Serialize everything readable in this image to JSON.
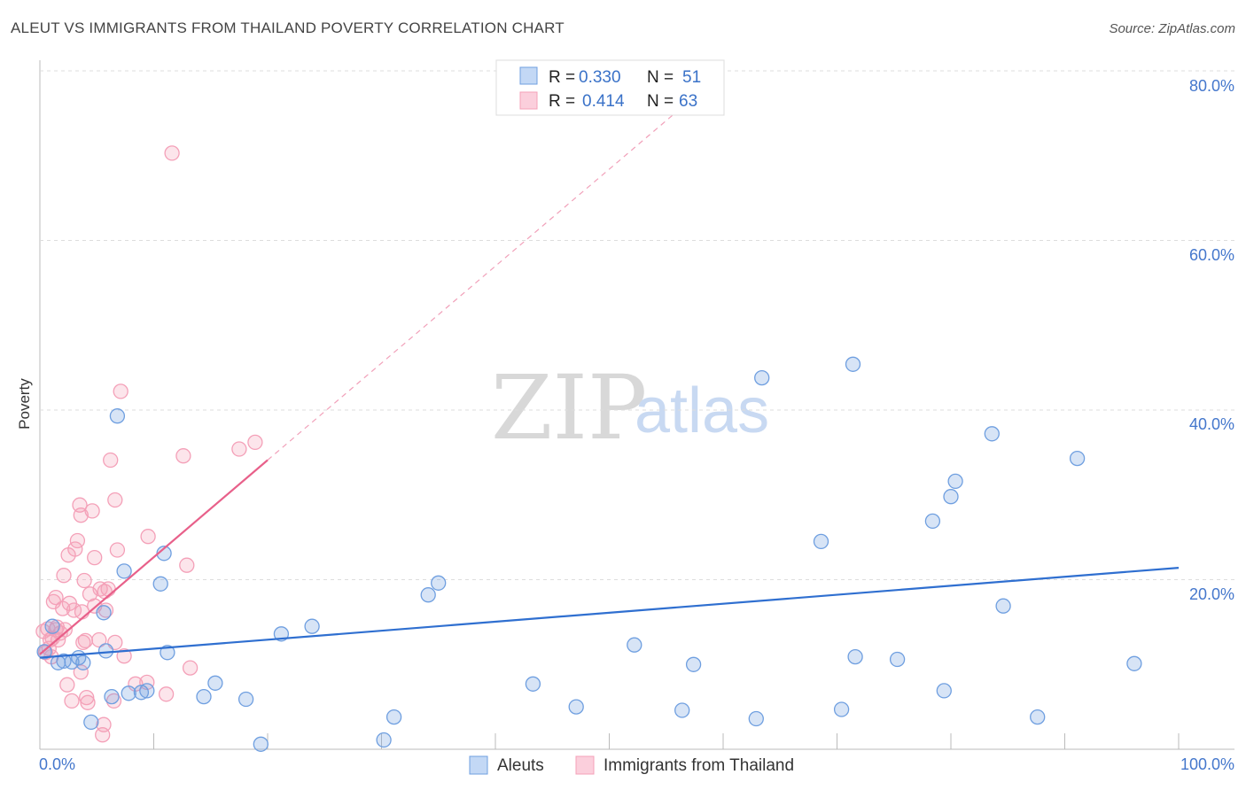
{
  "title": "ALEUT VS IMMIGRANTS FROM THAILAND POVERTY CORRELATION CHART",
  "source": "Source: ZipAtlas.com",
  "watermark": {
    "zip": "ZIP",
    "atlas": "atlas"
  },
  "legend": {
    "items": [
      {
        "r_label": "R =",
        "r_value": "0.330",
        "n_label": "N =",
        "n_value": "51"
      },
      {
        "r_label": "R =",
        "r_value": "0.414",
        "n_label": "N =",
        "n_value": "63"
      }
    ]
  },
  "bottom_legend": [
    "Aleuts",
    "Immigrants from Thailand"
  ],
  "chart_data": {
    "type": "scatter",
    "xlabel": "",
    "ylabel": "Poverty",
    "x_ticks": [
      "0.0%",
      "100.0%"
    ],
    "y_ticks": [
      "20.0%",
      "40.0%",
      "60.0%",
      "80.0%"
    ],
    "xlim": [
      0,
      100
    ],
    "ylim": [
      0,
      80
    ],
    "grid": true,
    "legend_position": "top-center",
    "colors": {
      "aleuts": "#6f9fe0",
      "thailand": "#f4a0b8",
      "aleuts_line": "#2f6fd0",
      "thailand_line": "#e8608a"
    },
    "series": [
      {
        "name": "Aleuts",
        "trend": {
          "x": [
            0,
            100
          ],
          "y": [
            10.8,
            21.4
          ],
          "dashed_extension": false
        },
        "points": [
          [
            0.4,
            11.5
          ],
          [
            1.1,
            14.5
          ],
          [
            1.6,
            10.2
          ],
          [
            2.1,
            10.4
          ],
          [
            2.8,
            10.3
          ],
          [
            3.4,
            10.8
          ],
          [
            3.8,
            10.2
          ],
          [
            4.5,
            3.2
          ],
          [
            5.6,
            16.1
          ],
          [
            5.8,
            11.6
          ],
          [
            6.3,
            6.2
          ],
          [
            6.8,
            39.3
          ],
          [
            7.4,
            21.0
          ],
          [
            7.8,
            6.6
          ],
          [
            8.9,
            6.7
          ],
          [
            9.4,
            6.9
          ],
          [
            10.6,
            19.5
          ],
          [
            10.9,
            23.1
          ],
          [
            11.2,
            11.4
          ],
          [
            14.4,
            6.2
          ],
          [
            15.4,
            7.8
          ],
          [
            18.1,
            5.9
          ],
          [
            19.4,
            0.6
          ],
          [
            21.2,
            13.6
          ],
          [
            23.9,
            14.5
          ],
          [
            30.2,
            1.1
          ],
          [
            31.1,
            3.8
          ],
          [
            34.1,
            18.2
          ],
          [
            35.0,
            19.6
          ],
          [
            43.3,
            7.7
          ],
          [
            47.1,
            5.0
          ],
          [
            52.2,
            12.3
          ],
          [
            56.4,
            4.6
          ],
          [
            57.4,
            10.0
          ],
          [
            62.9,
            3.6
          ],
          [
            63.4,
            43.8
          ],
          [
            68.6,
            24.5
          ],
          [
            70.4,
            4.7
          ],
          [
            71.4,
            45.4
          ],
          [
            71.6,
            10.9
          ],
          [
            75.3,
            10.6
          ],
          [
            78.4,
            26.9
          ],
          [
            79.4,
            6.9
          ],
          [
            80.0,
            29.8
          ],
          [
            80.4,
            31.6
          ],
          [
            83.6,
            37.2
          ],
          [
            84.6,
            16.9
          ],
          [
            87.6,
            3.8
          ],
          [
            91.1,
            34.3
          ],
          [
            96.1,
            10.1
          ]
        ]
      },
      {
        "name": "Immigrants from Thailand",
        "trend": {
          "x": [
            0,
            20
          ],
          "y": [
            11.2,
            34.1
          ],
          "dashed_extension": true,
          "extension_to": [
            56.9,
            76.3
          ]
        },
        "points": [
          [
            0.3,
            13.9
          ],
          [
            0.5,
            11.4
          ],
          [
            0.7,
            14.2
          ],
          [
            0.8,
            11.9
          ],
          [
            0.9,
            12.9
          ],
          [
            1.0,
            10.9
          ],
          [
            1.1,
            13.1
          ],
          [
            1.2,
            17.4
          ],
          [
            1.4,
            17.9
          ],
          [
            1.4,
            14.1
          ],
          [
            1.5,
            14.4
          ],
          [
            1.6,
            12.9
          ],
          [
            1.8,
            13.7
          ],
          [
            2.0,
            16.6
          ],
          [
            2.1,
            20.5
          ],
          [
            2.2,
            14.1
          ],
          [
            2.4,
            7.6
          ],
          [
            2.5,
            22.9
          ],
          [
            2.6,
            17.2
          ],
          [
            2.8,
            5.7
          ],
          [
            3.0,
            16.4
          ],
          [
            3.1,
            23.6
          ],
          [
            3.3,
            24.6
          ],
          [
            3.5,
            28.8
          ],
          [
            3.6,
            9.1
          ],
          [
            3.6,
            27.6
          ],
          [
            3.7,
            16.2
          ],
          [
            3.8,
            12.6
          ],
          [
            3.9,
            19.9
          ],
          [
            4.0,
            12.8
          ],
          [
            4.1,
            6.1
          ],
          [
            4.2,
            5.5
          ],
          [
            4.4,
            18.3
          ],
          [
            4.6,
            28.1
          ],
          [
            4.8,
            22.6
          ],
          [
            4.8,
            16.9
          ],
          [
            5.2,
            12.9
          ],
          [
            5.3,
            18.9
          ],
          [
            5.5,
            1.7
          ],
          [
            5.6,
            2.9
          ],
          [
            5.7,
            18.6
          ],
          [
            5.8,
            16.4
          ],
          [
            6.0,
            18.9
          ],
          [
            6.2,
            34.1
          ],
          [
            6.5,
            5.7
          ],
          [
            6.6,
            12.6
          ],
          [
            6.6,
            29.4
          ],
          [
            6.8,
            23.5
          ],
          [
            7.1,
            42.2
          ],
          [
            7.4,
            11.0
          ],
          [
            8.4,
            7.7
          ],
          [
            9.4,
            7.9
          ],
          [
            9.5,
            25.1
          ],
          [
            11.1,
            6.5
          ],
          [
            11.6,
            70.3
          ],
          [
            12.6,
            34.6
          ],
          [
            12.9,
            21.7
          ],
          [
            13.2,
            9.6
          ],
          [
            17.5,
            35.4
          ],
          [
            18.9,
            36.2
          ]
        ]
      }
    ]
  }
}
